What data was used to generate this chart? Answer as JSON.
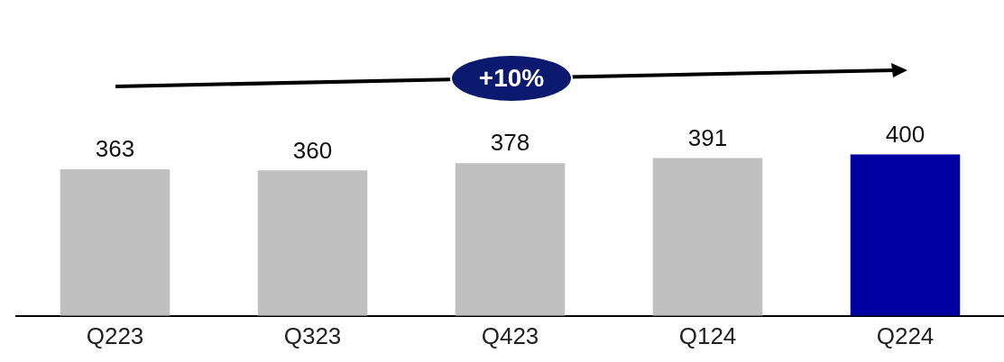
{
  "chart_data": {
    "type": "bar",
    "categories": [
      "Q223",
      "Q323",
      "Q423",
      "Q124",
      "Q224"
    ],
    "values": [
      363,
      360,
      378,
      391,
      400
    ],
    "colors": [
      "#c0c0c0",
      "#c0c0c0",
      "#c0c0c0",
      "#c0c0c0",
      "#0000a0"
    ],
    "data_labels": true,
    "grid": false,
    "legend": false,
    "annotations": [
      "+10%"
    ]
  }
}
